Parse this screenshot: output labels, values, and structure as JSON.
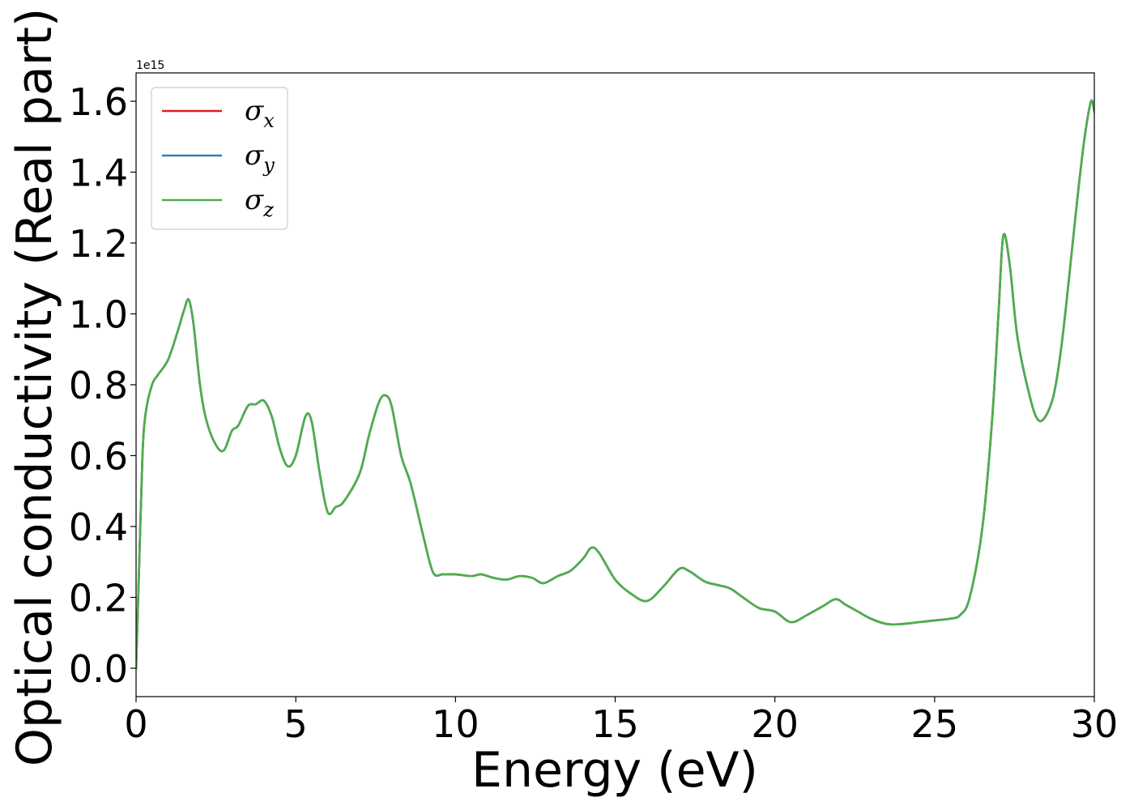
{
  "chart_data": {
    "type": "line",
    "title": "",
    "xlabel": "Energy (eV)",
    "ylabel": "Optical conductivity (Real part)",
    "y_offset_label": "1e15",
    "xlim": [
      0,
      30
    ],
    "ylim": [
      -0.08,
      1.68
    ],
    "y_scale": 1000000000000000.0,
    "x_ticks": [
      0,
      5,
      10,
      15,
      20,
      25,
      30
    ],
    "x_tick_labels": [
      "0",
      "5",
      "10",
      "15",
      "20",
      "25",
      "30"
    ],
    "y_ticks": [
      0.0,
      0.2,
      0.4,
      0.6,
      0.8,
      1.0,
      1.2,
      1.4,
      1.6
    ],
    "y_tick_labels": [
      "0.0",
      "0.2",
      "0.4",
      "0.6",
      "0.8",
      "1.0",
      "1.2",
      "1.4",
      "1.6"
    ],
    "grid": false,
    "legend_position": "top-left",
    "x": [
      0,
      0.1,
      0.2,
      0.3,
      0.5,
      0.7,
      1.0,
      1.3,
      1.5,
      1.65,
      1.8,
      2.0,
      2.2,
      2.5,
      2.75,
      3.0,
      3.2,
      3.5,
      3.75,
      4.0,
      4.25,
      4.5,
      4.75,
      5.0,
      5.3,
      5.5,
      5.75,
      6.0,
      6.25,
      6.5,
      7.0,
      7.3,
      7.6,
      7.8,
      8.0,
      8.3,
      8.6,
      9.0,
      9.3,
      9.6,
      10.0,
      10.5,
      10.8,
      11.2,
      11.6,
      12.0,
      12.4,
      12.75,
      13.2,
      13.6,
      14.0,
      14.25,
      14.5,
      15.0,
      15.5,
      16.0,
      16.5,
      17.0,
      17.3,
      17.8,
      18.2,
      18.6,
      19.0,
      19.5,
      20.0,
      20.5,
      21.0,
      21.5,
      21.9,
      22.2,
      22.6,
      23.0,
      23.5,
      24.0,
      24.5,
      25.0,
      25.5,
      25.8,
      26.1,
      26.5,
      26.8,
      27.0,
      27.15,
      27.35,
      27.6,
      28.0,
      28.25,
      28.5,
      28.75,
      29.0,
      29.3,
      29.5,
      29.7,
      29.9,
      30.0
    ],
    "series": [
      {
        "name": "σx",
        "symbol": "σ",
        "subscript": "x",
        "color": "#e41a1c",
        "y": [
          0.0,
          0.3,
          0.6,
          0.72,
          0.8,
          0.83,
          0.87,
          0.95,
          1.01,
          1.04,
          0.97,
          0.8,
          0.7,
          0.63,
          0.615,
          0.67,
          0.685,
          0.74,
          0.745,
          0.755,
          0.71,
          0.62,
          0.57,
          0.6,
          0.71,
          0.695,
          0.55,
          0.44,
          0.455,
          0.47,
          0.55,
          0.66,
          0.75,
          0.77,
          0.74,
          0.6,
          0.52,
          0.37,
          0.27,
          0.265,
          0.265,
          0.26,
          0.265,
          0.255,
          0.25,
          0.26,
          0.255,
          0.24,
          0.26,
          0.275,
          0.31,
          0.34,
          0.325,
          0.25,
          0.21,
          0.19,
          0.23,
          0.28,
          0.275,
          0.245,
          0.235,
          0.225,
          0.2,
          0.17,
          0.16,
          0.13,
          0.15,
          0.175,
          0.195,
          0.18,
          0.16,
          0.14,
          0.125,
          0.125,
          0.13,
          0.135,
          0.14,
          0.15,
          0.2,
          0.4,
          0.7,
          1.0,
          1.22,
          1.14,
          0.93,
          0.76,
          0.7,
          0.715,
          0.78,
          0.93,
          1.18,
          1.35,
          1.5,
          1.6,
          1.57
        ]
      },
      {
        "name": "σy",
        "symbol": "σ",
        "subscript": "y",
        "color": "#377eb8",
        "y": [
          0.0,
          0.3,
          0.6,
          0.72,
          0.8,
          0.83,
          0.87,
          0.95,
          1.01,
          1.04,
          0.97,
          0.8,
          0.7,
          0.63,
          0.615,
          0.67,
          0.685,
          0.74,
          0.745,
          0.755,
          0.71,
          0.62,
          0.57,
          0.6,
          0.71,
          0.695,
          0.55,
          0.44,
          0.455,
          0.47,
          0.55,
          0.66,
          0.75,
          0.77,
          0.74,
          0.6,
          0.52,
          0.37,
          0.27,
          0.265,
          0.265,
          0.26,
          0.265,
          0.255,
          0.25,
          0.26,
          0.255,
          0.24,
          0.26,
          0.275,
          0.31,
          0.34,
          0.325,
          0.25,
          0.21,
          0.19,
          0.23,
          0.28,
          0.275,
          0.245,
          0.235,
          0.225,
          0.2,
          0.17,
          0.16,
          0.13,
          0.15,
          0.175,
          0.195,
          0.18,
          0.16,
          0.14,
          0.125,
          0.125,
          0.13,
          0.135,
          0.14,
          0.15,
          0.2,
          0.4,
          0.7,
          1.0,
          1.22,
          1.14,
          0.93,
          0.76,
          0.7,
          0.715,
          0.78,
          0.93,
          1.18,
          1.35,
          1.5,
          1.6,
          1.57
        ]
      },
      {
        "name": "σz",
        "symbol": "σ",
        "subscript": "z",
        "color": "#4daf4a",
        "y": [
          0.0,
          0.3,
          0.6,
          0.72,
          0.8,
          0.83,
          0.87,
          0.95,
          1.01,
          1.04,
          0.97,
          0.8,
          0.7,
          0.63,
          0.615,
          0.67,
          0.685,
          0.74,
          0.745,
          0.755,
          0.71,
          0.62,
          0.57,
          0.6,
          0.71,
          0.695,
          0.55,
          0.44,
          0.455,
          0.47,
          0.55,
          0.66,
          0.75,
          0.77,
          0.74,
          0.6,
          0.52,
          0.37,
          0.27,
          0.265,
          0.265,
          0.26,
          0.265,
          0.255,
          0.25,
          0.26,
          0.255,
          0.24,
          0.26,
          0.275,
          0.31,
          0.34,
          0.325,
          0.25,
          0.21,
          0.19,
          0.23,
          0.28,
          0.275,
          0.245,
          0.235,
          0.225,
          0.2,
          0.17,
          0.16,
          0.13,
          0.15,
          0.175,
          0.195,
          0.18,
          0.16,
          0.14,
          0.125,
          0.125,
          0.13,
          0.135,
          0.14,
          0.15,
          0.2,
          0.4,
          0.7,
          1.0,
          1.22,
          1.14,
          0.93,
          0.76,
          0.7,
          0.715,
          0.78,
          0.93,
          1.18,
          1.35,
          1.5,
          1.6,
          1.57
        ]
      }
    ]
  }
}
